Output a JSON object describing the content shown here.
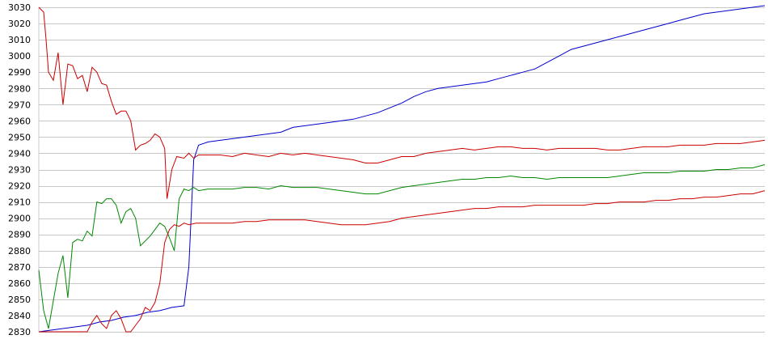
{
  "chart_data": {
    "type": "line",
    "title": "",
    "xlabel": "",
    "ylabel": "",
    "ylim": [
      2830,
      3030
    ],
    "xlim": [
      0,
      300
    ],
    "y_ticks": [
      2830,
      2840,
      2850,
      2860,
      2870,
      2880,
      2890,
      2900,
      2910,
      2920,
      2930,
      2940,
      2950,
      2960,
      2970,
      2980,
      2990,
      3000,
      3010,
      3020,
      3030
    ],
    "grid": "horizontal",
    "legend": "none",
    "colors": {
      "blue": "#0000cc",
      "red": "#cc0000",
      "green": "#008800",
      "grid": "#c8c8c8"
    },
    "series": [
      {
        "color": "#0000cc",
        "points": [
          [
            0,
            2830
          ],
          [
            5,
            2831
          ],
          [
            10,
            2832
          ],
          [
            15,
            2833
          ],
          [
            20,
            2834
          ],
          [
            25,
            2836
          ],
          [
            30,
            2837
          ],
          [
            35,
            2839
          ],
          [
            40,
            2840
          ],
          [
            45,
            2842
          ],
          [
            50,
            2843
          ],
          [
            55,
            2845
          ],
          [
            60,
            2846
          ],
          [
            62,
            2870
          ],
          [
            64,
            2936
          ],
          [
            66,
            2945
          ],
          [
            70,
            2947
          ],
          [
            75,
            2948
          ],
          [
            80,
            2949
          ],
          [
            85,
            2950
          ],
          [
            90,
            2951
          ],
          [
            95,
            2952
          ],
          [
            100,
            2953
          ],
          [
            105,
            2956
          ],
          [
            110,
            2957
          ],
          [
            115,
            2958
          ],
          [
            120,
            2959
          ],
          [
            125,
            2960
          ],
          [
            130,
            2961
          ],
          [
            135,
            2963
          ],
          [
            140,
            2965
          ],
          [
            145,
            2968
          ],
          [
            150,
            2971
          ],
          [
            155,
            2975
          ],
          [
            160,
            2978
          ],
          [
            165,
            2980
          ],
          [
            170,
            2981
          ],
          [
            175,
            2982
          ],
          [
            180,
            2983
          ],
          [
            185,
            2984
          ],
          [
            190,
            2986
          ],
          [
            195,
            2988
          ],
          [
            200,
            2990
          ],
          [
            205,
            2992
          ],
          [
            210,
            2996
          ],
          [
            215,
            3000
          ],
          [
            220,
            3004
          ],
          [
            225,
            3006
          ],
          [
            230,
            3008
          ],
          [
            235,
            3010
          ],
          [
            240,
            3012
          ],
          [
            245,
            3014
          ],
          [
            250,
            3016
          ],
          [
            255,
            3018
          ],
          [
            260,
            3020
          ],
          [
            265,
            3022
          ],
          [
            270,
            3024
          ],
          [
            275,
            3026
          ],
          [
            280,
            3027
          ],
          [
            285,
            3028
          ],
          [
            290,
            3029
          ],
          [
            295,
            3030
          ],
          [
            300,
            3031
          ]
        ]
      },
      {
        "color": "#cc0000",
        "points": [
          [
            0,
            3030
          ],
          [
            2,
            3027
          ],
          [
            3,
            3010
          ],
          [
            4,
            2990
          ],
          [
            6,
            2985
          ],
          [
            8,
            3002
          ],
          [
            10,
            2970
          ],
          [
            12,
            2995
          ],
          [
            14,
            2994
          ],
          [
            16,
            2986
          ],
          [
            18,
            2988
          ],
          [
            20,
            2978
          ],
          [
            22,
            2993
          ],
          [
            24,
            2990
          ],
          [
            26,
            2983
          ],
          [
            28,
            2982
          ],
          [
            30,
            2972
          ],
          [
            32,
            2964
          ],
          [
            34,
            2966
          ],
          [
            36,
            2966
          ],
          [
            38,
            2960
          ],
          [
            40,
            2942
          ],
          [
            42,
            2945
          ],
          [
            44,
            2946
          ],
          [
            46,
            2948
          ],
          [
            48,
            2952
          ],
          [
            50,
            2950
          ],
          [
            52,
            2943
          ],
          [
            53,
            2912
          ],
          [
            55,
            2930
          ],
          [
            57,
            2938
          ],
          [
            60,
            2937
          ],
          [
            62,
            2940
          ],
          [
            64,
            2937
          ],
          [
            66,
            2939
          ],
          [
            70,
            2939
          ],
          [
            75,
            2939
          ],
          [
            80,
            2938
          ],
          [
            85,
            2940
          ],
          [
            90,
            2939
          ],
          [
            95,
            2938
          ],
          [
            100,
            2940
          ],
          [
            105,
            2939
          ],
          [
            110,
            2940
          ],
          [
            115,
            2939
          ],
          [
            120,
            2938
          ],
          [
            125,
            2937
          ],
          [
            130,
            2936
          ],
          [
            135,
            2934
          ],
          [
            140,
            2934
          ],
          [
            145,
            2936
          ],
          [
            150,
            2938
          ],
          [
            155,
            2938
          ],
          [
            160,
            2940
          ],
          [
            165,
            2941
          ],
          [
            170,
            2942
          ],
          [
            175,
            2943
          ],
          [
            180,
            2942
          ],
          [
            185,
            2943
          ],
          [
            190,
            2944
          ],
          [
            195,
            2944
          ],
          [
            200,
            2943
          ],
          [
            205,
            2943
          ],
          [
            210,
            2942
          ],
          [
            215,
            2943
          ],
          [
            220,
            2943
          ],
          [
            225,
            2943
          ],
          [
            230,
            2943
          ],
          [
            235,
            2942
          ],
          [
            240,
            2942
          ],
          [
            245,
            2943
          ],
          [
            250,
            2944
          ],
          [
            255,
            2944
          ],
          [
            260,
            2944
          ],
          [
            265,
            2945
          ],
          [
            270,
            2945
          ],
          [
            275,
            2945
          ],
          [
            280,
            2946
          ],
          [
            285,
            2946
          ],
          [
            290,
            2946
          ],
          [
            295,
            2947
          ],
          [
            300,
            2948
          ]
        ]
      },
      {
        "color": "#008800",
        "points": [
          [
            0,
            2868
          ],
          [
            2,
            2843
          ],
          [
            4,
            2832
          ],
          [
            8,
            2866
          ],
          [
            10,
            2877
          ],
          [
            12,
            2851
          ],
          [
            14,
            2885
          ],
          [
            16,
            2887
          ],
          [
            18,
            2886
          ],
          [
            20,
            2892
          ],
          [
            22,
            2889
          ],
          [
            24,
            2910
          ],
          [
            26,
            2909
          ],
          [
            28,
            2912
          ],
          [
            30,
            2912
          ],
          [
            32,
            2908
          ],
          [
            34,
            2897
          ],
          [
            36,
            2904
          ],
          [
            38,
            2906
          ],
          [
            40,
            2900
          ],
          [
            42,
            2883
          ],
          [
            44,
            2886
          ],
          [
            46,
            2889
          ],
          [
            48,
            2893
          ],
          [
            50,
            2897
          ],
          [
            52,
            2895
          ],
          [
            54,
            2888
          ],
          [
            56,
            2880
          ],
          [
            58,
            2912
          ],
          [
            60,
            2918
          ],
          [
            62,
            2917
          ],
          [
            64,
            2919
          ],
          [
            66,
            2917
          ],
          [
            70,
            2918
          ],
          [
            75,
            2918
          ],
          [
            80,
            2918
          ],
          [
            85,
            2919
          ],
          [
            90,
            2919
          ],
          [
            95,
            2918
          ],
          [
            100,
            2920
          ],
          [
            105,
            2919
          ],
          [
            110,
            2919
          ],
          [
            115,
            2919
          ],
          [
            120,
            2918
          ],
          [
            125,
            2917
          ],
          [
            130,
            2916
          ],
          [
            135,
            2915
          ],
          [
            140,
            2915
          ],
          [
            145,
            2917
          ],
          [
            150,
            2919
          ],
          [
            155,
            2920
          ],
          [
            160,
            2921
          ],
          [
            165,
            2922
          ],
          [
            170,
            2923
          ],
          [
            175,
            2924
          ],
          [
            180,
            2924
          ],
          [
            185,
            2925
          ],
          [
            190,
            2925
          ],
          [
            195,
            2926
          ],
          [
            200,
            2925
          ],
          [
            205,
            2925
          ],
          [
            210,
            2924
          ],
          [
            215,
            2925
          ],
          [
            220,
            2925
          ],
          [
            225,
            2925
          ],
          [
            230,
            2925
          ],
          [
            235,
            2925
          ],
          [
            240,
            2926
          ],
          [
            245,
            2927
          ],
          [
            250,
            2928
          ],
          [
            255,
            2928
          ],
          [
            260,
            2928
          ],
          [
            265,
            2929
          ],
          [
            270,
            2929
          ],
          [
            275,
            2929
          ],
          [
            280,
            2930
          ],
          [
            285,
            2930
          ],
          [
            290,
            2931
          ],
          [
            295,
            2931
          ],
          [
            300,
            2933
          ]
        ]
      },
      {
        "color": "#cc0000",
        "points": [
          [
            0,
            2830
          ],
          [
            5,
            2830
          ],
          [
            10,
            2830
          ],
          [
            15,
            2830
          ],
          [
            20,
            2830
          ],
          [
            22,
            2836
          ],
          [
            24,
            2840
          ],
          [
            26,
            2835
          ],
          [
            28,
            2832
          ],
          [
            30,
            2840
          ],
          [
            32,
            2843
          ],
          [
            34,
            2838
          ],
          [
            36,
            2830
          ],
          [
            38,
            2830
          ],
          [
            40,
            2834
          ],
          [
            42,
            2838
          ],
          [
            44,
            2845
          ],
          [
            46,
            2843
          ],
          [
            48,
            2848
          ],
          [
            50,
            2860
          ],
          [
            52,
            2885
          ],
          [
            54,
            2893
          ],
          [
            56,
            2896
          ],
          [
            58,
            2895
          ],
          [
            60,
            2897
          ],
          [
            62,
            2896
          ],
          [
            65,
            2897
          ],
          [
            70,
            2897
          ],
          [
            75,
            2897
          ],
          [
            80,
            2897
          ],
          [
            85,
            2898
          ],
          [
            90,
            2898
          ],
          [
            95,
            2899
          ],
          [
            100,
            2899
          ],
          [
            105,
            2899
          ],
          [
            110,
            2899
          ],
          [
            115,
            2898
          ],
          [
            120,
            2897
          ],
          [
            125,
            2896
          ],
          [
            130,
            2896
          ],
          [
            135,
            2896
          ],
          [
            140,
            2897
          ],
          [
            145,
            2898
          ],
          [
            150,
            2900
          ],
          [
            155,
            2901
          ],
          [
            160,
            2902
          ],
          [
            165,
            2903
          ],
          [
            170,
            2904
          ],
          [
            175,
            2905
          ],
          [
            180,
            2906
          ],
          [
            185,
            2906
          ],
          [
            190,
            2907
          ],
          [
            195,
            2907
          ],
          [
            200,
            2907
          ],
          [
            205,
            2908
          ],
          [
            210,
            2908
          ],
          [
            215,
            2908
          ],
          [
            220,
            2908
          ],
          [
            225,
            2908
          ],
          [
            230,
            2909
          ],
          [
            235,
            2909
          ],
          [
            240,
            2910
          ],
          [
            245,
            2910
          ],
          [
            250,
            2910
          ],
          [
            255,
            2911
          ],
          [
            260,
            2911
          ],
          [
            265,
            2912
          ],
          [
            270,
            2912
          ],
          [
            275,
            2913
          ],
          [
            280,
            2913
          ],
          [
            285,
            2914
          ],
          [
            290,
            2915
          ],
          [
            295,
            2915
          ],
          [
            300,
            2917
          ]
        ]
      }
    ]
  }
}
